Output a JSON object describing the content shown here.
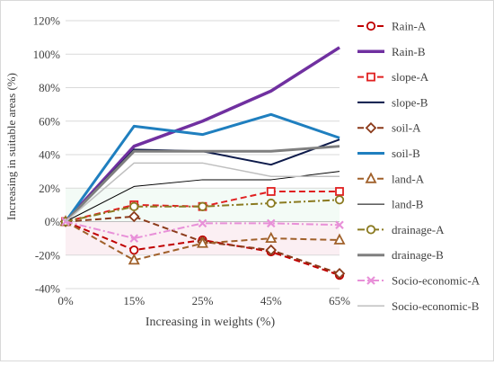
{
  "chart_data": {
    "type": "line",
    "xlabel": "Increasing in weights (%)",
    "ylabel": "Increasing in suitable areas (%)",
    "categories": [
      "0%",
      "15%",
      "25%",
      "45%",
      "65%"
    ],
    "ylim": [
      -40,
      120
    ],
    "yticks": [
      -40,
      -20,
      0,
      20,
      40,
      60,
      80,
      100,
      120
    ],
    "ytick_labels": [
      "-40%",
      "-20%",
      "0%",
      "20%",
      "40%",
      "60%",
      "80%",
      "100%",
      "120%"
    ],
    "grid": "horizontal",
    "legend": "right",
    "series": [
      {
        "name": "Rain-A",
        "values": [
          0,
          -17,
          -11,
          -18,
          -32
        ],
        "color": "#c00000",
        "style": "dashed",
        "marker": "circle",
        "width": 2
      },
      {
        "name": "Rain-B",
        "values": [
          0,
          45,
          60,
          78,
          104
        ],
        "color": "#7030a0",
        "style": "solid",
        "marker": "none",
        "width": 3.5
      },
      {
        "name": "slope-A",
        "values": [
          0,
          10,
          9,
          18,
          18
        ],
        "color": "#e02020",
        "style": "dashed",
        "marker": "square",
        "width": 2
      },
      {
        "name": "slope-B",
        "values": [
          0,
          43,
          42,
          34,
          49
        ],
        "color": "#0d1a4a",
        "style": "solid",
        "marker": "none",
        "width": 2
      },
      {
        "name": "soil-A",
        "values": [
          0,
          3,
          -12,
          -17,
          -31
        ],
        "color": "#8b3a1a",
        "style": "dashed",
        "marker": "diamond",
        "width": 2
      },
      {
        "name": "soil-B",
        "values": [
          0,
          57,
          52,
          64,
          50
        ],
        "color": "#1f7fbf",
        "style": "solid",
        "marker": "none",
        "width": 3
      },
      {
        "name": "land-A",
        "values": [
          0,
          -23,
          -13,
          -10,
          -11
        ],
        "color": "#a0602a",
        "style": "dashed",
        "marker": "triangle",
        "width": 2
      },
      {
        "name": "land-B",
        "values": [
          0,
          21,
          25,
          25,
          30
        ],
        "color": "#000000",
        "style": "solid",
        "marker": "none",
        "width": 1
      },
      {
        "name": "drainage-A",
        "values": [
          0,
          9,
          9,
          11,
          13
        ],
        "color": "#8a7a20",
        "style": "dashdot",
        "marker": "circle",
        "width": 2
      },
      {
        "name": "drainage-B",
        "values": [
          0,
          42,
          42,
          42,
          45
        ],
        "color": "#7f7f7f",
        "style": "solid",
        "marker": "none",
        "width": 3
      },
      {
        "name": "Socio-economic-A",
        "values": [
          0,
          -10,
          -1,
          -1,
          -2
        ],
        "color": "#e890d8",
        "style": "dashdot",
        "marker": "x",
        "width": 2
      },
      {
        "name": "Socio-economic-B",
        "values": [
          0,
          35,
          35,
          27,
          27
        ],
        "color": "#bfbfbf",
        "style": "solid",
        "marker": "none",
        "width": 1.5
      }
    ]
  }
}
